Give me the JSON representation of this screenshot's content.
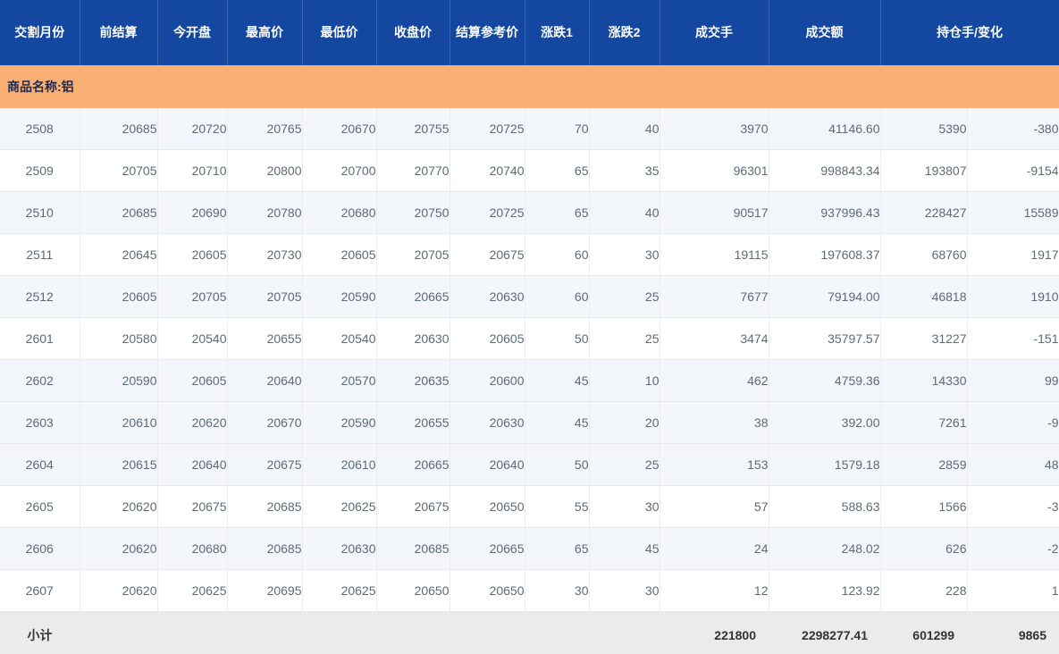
{
  "colors": {
    "header_bg": "#1347a0",
    "header_divider": "#3a66b3",
    "header_text": "#ffffff",
    "product_bg": "#f9ae74",
    "product_text": "#1c2b55",
    "row_text": "#5d6a78",
    "shaded_row_bg": "#f3f6fa",
    "white_row_bg": "#ffffff",
    "grid_line": "#e7e7e7",
    "subtotal_bg": "#ebebeb",
    "subtotal_text": "#333333"
  },
  "table": {
    "columns": [
      "交割月份",
      "前结算",
      "今开盘",
      "最高价",
      "最低价",
      "收盘价",
      "结算参考价",
      "涨跌1",
      "涨跌2",
      "成交手",
      "成交额",
      "持仓手/变化"
    ],
    "product_label": "商品名称:铝",
    "rows": [
      {
        "month": "2508",
        "prev_settle": "20685",
        "open": "20720",
        "high": "20765",
        "low": "20670",
        "close": "20755",
        "settle_ref": "20725",
        "change1": "70",
        "change2": "40",
        "volume": "3970",
        "turnover": "41146.60",
        "open_interest": "5390",
        "oi_change": "-380",
        "shaded": true
      },
      {
        "month": "2509",
        "prev_settle": "20705",
        "open": "20710",
        "high": "20800",
        "low": "20700",
        "close": "20770",
        "settle_ref": "20740",
        "change1": "65",
        "change2": "35",
        "volume": "96301",
        "turnover": "998843.34",
        "open_interest": "193807",
        "oi_change": "-9154",
        "shaded": false
      },
      {
        "month": "2510",
        "prev_settle": "20685",
        "open": "20690",
        "high": "20780",
        "low": "20680",
        "close": "20750",
        "settle_ref": "20725",
        "change1": "65",
        "change2": "40",
        "volume": "90517",
        "turnover": "937996.43",
        "open_interest": "228427",
        "oi_change": "15589",
        "shaded": true
      },
      {
        "month": "2511",
        "prev_settle": "20645",
        "open": "20605",
        "high": "20730",
        "low": "20605",
        "close": "20705",
        "settle_ref": "20675",
        "change1": "60",
        "change2": "30",
        "volume": "19115",
        "turnover": "197608.37",
        "open_interest": "68760",
        "oi_change": "1917",
        "shaded": false
      },
      {
        "month": "2512",
        "prev_settle": "20605",
        "open": "20705",
        "high": "20705",
        "low": "20590",
        "close": "20665",
        "settle_ref": "20630",
        "change1": "60",
        "change2": "25",
        "volume": "7677",
        "turnover": "79194.00",
        "open_interest": "46818",
        "oi_change": "1910",
        "shaded": true
      },
      {
        "month": "2601",
        "prev_settle": "20580",
        "open": "20540",
        "high": "20655",
        "low": "20540",
        "close": "20630",
        "settle_ref": "20605",
        "change1": "50",
        "change2": "25",
        "volume": "3474",
        "turnover": "35797.57",
        "open_interest": "31227",
        "oi_change": "-151",
        "shaded": false
      },
      {
        "month": "2602",
        "prev_settle": "20590",
        "open": "20605",
        "high": "20640",
        "low": "20570",
        "close": "20635",
        "settle_ref": "20600",
        "change1": "45",
        "change2": "10",
        "volume": "462",
        "turnover": "4759.36",
        "open_interest": "14330",
        "oi_change": "99",
        "shaded": true
      },
      {
        "month": "2603",
        "prev_settle": "20610",
        "open": "20620",
        "high": "20670",
        "low": "20590",
        "close": "20655",
        "settle_ref": "20630",
        "change1": "45",
        "change2": "20",
        "volume": "38",
        "turnover": "392.00",
        "open_interest": "7261",
        "oi_change": "-9",
        "shaded": true
      },
      {
        "month": "2604",
        "prev_settle": "20615",
        "open": "20640",
        "high": "20675",
        "low": "20610",
        "close": "20665",
        "settle_ref": "20640",
        "change1": "50",
        "change2": "25",
        "volume": "153",
        "turnover": "1579.18",
        "open_interest": "2859",
        "oi_change": "48",
        "shaded": true
      },
      {
        "month": "2605",
        "prev_settle": "20620",
        "open": "20675",
        "high": "20685",
        "low": "20625",
        "close": "20675",
        "settle_ref": "20650",
        "change1": "55",
        "change2": "30",
        "volume": "57",
        "turnover": "588.63",
        "open_interest": "1566",
        "oi_change": "-3",
        "shaded": false
      },
      {
        "month": "2606",
        "prev_settle": "20620",
        "open": "20680",
        "high": "20685",
        "low": "20630",
        "close": "20685",
        "settle_ref": "20665",
        "change1": "65",
        "change2": "45",
        "volume": "24",
        "turnover": "248.02",
        "open_interest": "626",
        "oi_change": "-2",
        "shaded": true
      },
      {
        "month": "2607",
        "prev_settle": "20620",
        "open": "20625",
        "high": "20695",
        "low": "20625",
        "close": "20650",
        "settle_ref": "20650",
        "change1": "30",
        "change2": "30",
        "volume": "12",
        "turnover": "123.92",
        "open_interest": "228",
        "oi_change": "1",
        "shaded": false
      }
    ],
    "subtotal": {
      "label": "小计",
      "volume": "221800",
      "turnover": "2298277.41",
      "open_interest": "601299",
      "oi_change": "9865"
    }
  }
}
